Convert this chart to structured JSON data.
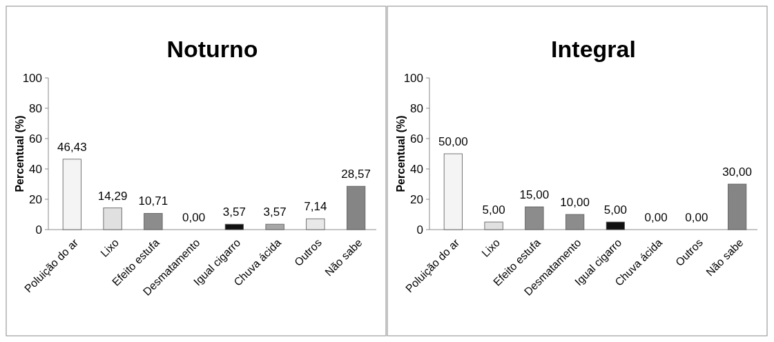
{
  "chart_data": [
    {
      "type": "bar",
      "title": "Noturno",
      "ylabel": "Percentual (%)",
      "categories": [
        "Poluição do ar",
        "Lixo",
        "Efeito estufa",
        "Desmatamento",
        "Igual cigarro",
        "Chuva ácida",
        "Outros",
        "Não sabe"
      ],
      "values": [
        46.43,
        14.29,
        10.71,
        0,
        3.57,
        3.57,
        7.14,
        28.57
      ],
      "value_labels": [
        "46,43",
        "14,29",
        "10,71",
        "0,00",
        "3,57",
        "3,57",
        "7,14",
        "28,57"
      ],
      "colors": [
        "#f4f4f4",
        "#e0e0e0",
        "#8c8c8c",
        "#9a9a9a",
        "#111111",
        "#a6a6a6",
        "#e8e8e8",
        "#858585"
      ],
      "ylim": [
        0,
        100
      ],
      "yticks": [
        0,
        20,
        40,
        60,
        80,
        100
      ]
    },
    {
      "type": "bar",
      "title": "Integral",
      "ylabel": "Percentual (%)",
      "categories": [
        "Poluição do ar",
        "Lixo",
        "Efeito estufa",
        "Desmatamento",
        "Igual cigarro",
        "Chuva ácida",
        "Outros",
        "Não sabe"
      ],
      "values": [
        50,
        5,
        15,
        10,
        5,
        0,
        0,
        30
      ],
      "value_labels": [
        "50,00",
        "5,00",
        "15,00",
        "10,00",
        "5,00",
        "0,00",
        "0,00",
        "30,00"
      ],
      "colors": [
        "#f4f4f4",
        "#e0e0e0",
        "#8c8c8c",
        "#8c8c8c",
        "#111111",
        "#a6a6a6",
        "#e8e8e8",
        "#858585"
      ],
      "ylim": [
        0,
        100
      ],
      "yticks": [
        0,
        20,
        40,
        60,
        80,
        100
      ]
    }
  ]
}
